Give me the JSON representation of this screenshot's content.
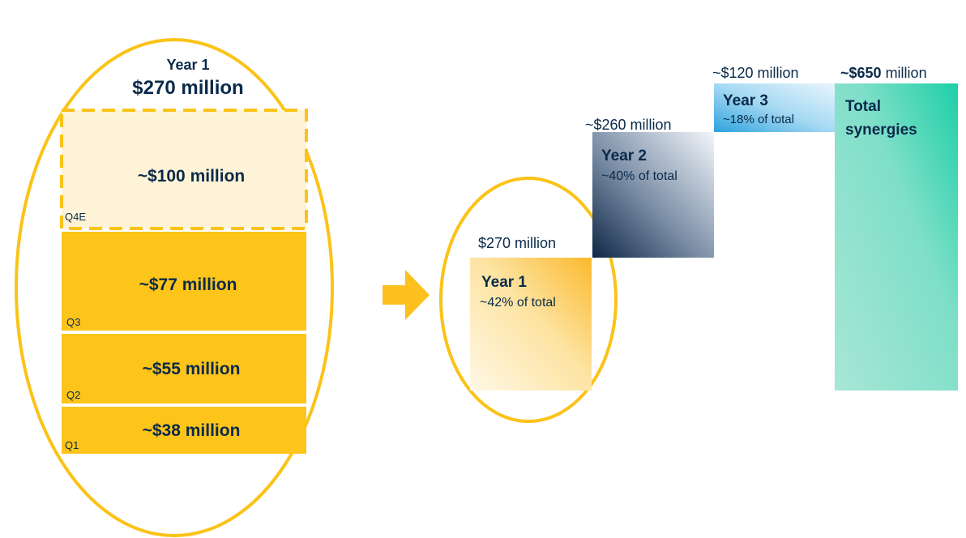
{
  "breakdown": {
    "title": "Year 1",
    "total": "$270 million",
    "quarters": [
      {
        "label": "Q4E",
        "amount": "~$100 million"
      },
      {
        "label": "Q3",
        "amount": "~$77 million"
      },
      {
        "label": "Q2",
        "amount": "~$55 million"
      },
      {
        "label": "Q1",
        "amount": "~$38 million"
      }
    ]
  },
  "steps": [
    {
      "amount": "$270 million",
      "label": "Year 1",
      "share": "~42% of total"
    },
    {
      "amount": "~$260 million",
      "label": "Year 2",
      "share": "~40% of total"
    },
    {
      "amount": "~$120 million",
      "label": "Year 3",
      "share": "~18% of total"
    }
  ],
  "total": {
    "amount": "~$650",
    "unit": "million",
    "label": [
      "Total",
      "synergies"
    ]
  }
}
